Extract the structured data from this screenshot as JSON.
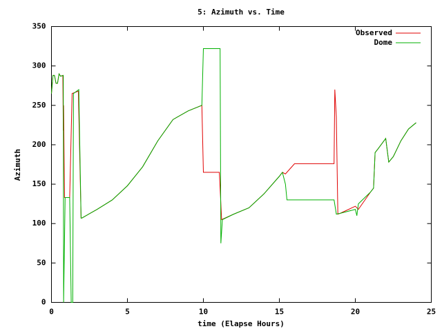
{
  "chart_data": {
    "type": "line",
    "title": "5: Azimuth vs. Time",
    "xlabel": "time (Elapse Hours)",
    "ylabel": "Azimuth",
    "xlim": [
      0,
      25
    ],
    "xticks": [
      0,
      5,
      10,
      15,
      20,
      25
    ],
    "ylim": [
      0,
      350
    ],
    "yticks": [
      0,
      50,
      100,
      150,
      200,
      250,
      300,
      350
    ],
    "grid": false,
    "legend": "top-right",
    "series": [
      {
        "name": "Observed",
        "color": "#e00000",
        "x": [
          0,
          0.1,
          0.2,
          0.3,
          0.4,
          0.5,
          0.6,
          0.75,
          0.78,
          0.8,
          0.86,
          1.2,
          1.36,
          1.77,
          1.95,
          2,
          3,
          4,
          5,
          6,
          7,
          8,
          9,
          9.9,
          10,
          11.05,
          11.2,
          12,
          13,
          14,
          15,
          15.2,
          15.4,
          16,
          18.6,
          18.65,
          18.75,
          18.85,
          19,
          20,
          20.2,
          21,
          21.2,
          21.3,
          21.5,
          22,
          22.2,
          22.5,
          23,
          23.5,
          24
        ],
        "values": [
          265,
          288,
          288,
          278,
          278,
          290,
          287,
          288,
          218,
          250,
          133,
          133,
          265,
          268,
          107,
          107,
          118,
          130,
          148,
          172,
          205,
          232,
          243,
          250,
          165,
          165,
          105,
          112,
          120,
          138,
          160,
          165,
          163,
          176,
          176,
          270,
          235,
          112,
          113,
          122,
          118,
          140,
          145,
          190,
          195,
          208,
          178,
          185,
          205,
          220,
          228
        ]
      },
      {
        "name": "Dome",
        "color": "#00b000",
        "x": [
          0,
          0.1,
          0.2,
          0.3,
          0.4,
          0.5,
          0.6,
          0.78,
          0.8,
          0.9,
          1.2,
          1.3,
          1.4,
          1.45,
          1.8,
          1.95,
          2,
          3,
          4,
          5,
          6,
          7,
          8,
          9,
          9.9,
          10,
          11.1,
          11.15,
          11.25,
          12,
          13,
          14,
          15,
          15.2,
          15.4,
          15.5,
          18.6,
          18.75,
          19,
          20,
          20.1,
          20.2,
          21,
          21.2,
          21.3,
          21.5,
          22,
          22.2,
          22.5,
          23,
          23.5,
          24
        ],
        "values": [
          265,
          288,
          288,
          278,
          278,
          290,
          287,
          288,
          0,
          133,
          133,
          0,
          0,
          265,
          270,
          107,
          107,
          118,
          130,
          148,
          172,
          205,
          232,
          243,
          250,
          322,
          322,
          75,
          105,
          112,
          120,
          138,
          160,
          165,
          150,
          130,
          130,
          112,
          113,
          118,
          110,
          125,
          140,
          145,
          190,
          195,
          208,
          178,
          185,
          205,
          220,
          228
        ]
      }
    ]
  }
}
